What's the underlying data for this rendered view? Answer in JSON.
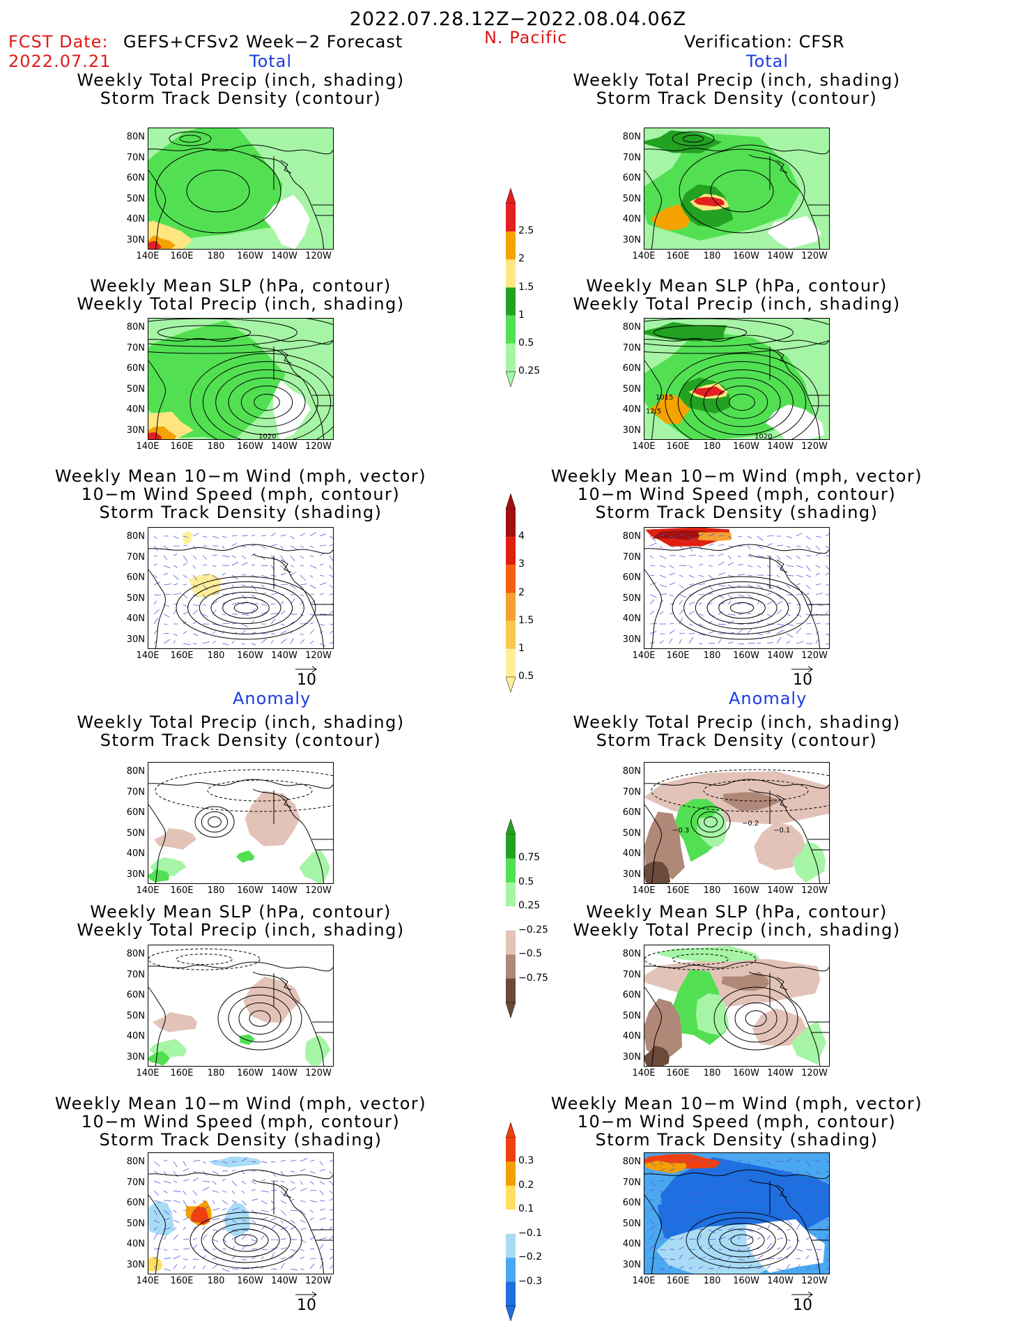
{
  "header": {
    "date_range": "2022.07.28.12Z−2022.08.04.06Z",
    "fcst_label": "FCST Date:",
    "model_label": "GEFS+CFSv2 Week−2 Forecast",
    "fcst_date": "2022.07.21",
    "region": "N. Pacific",
    "verification": "Verification: CFSR"
  },
  "sections": {
    "total": "Total",
    "anomaly": "Anomaly"
  },
  "titles": {
    "precip_storm": [
      "Weekly Total Precip (inch, shading)",
      "Storm Track Density (contour)"
    ],
    "slp_precip": [
      "Weekly Mean SLP (hPa, contour)",
      "Weekly Total Precip (inch, shading)"
    ],
    "wind_storm": [
      "Weekly Mean 10−m Wind (mph, vector)",
      "10−m Wind Speed (mph, contour)",
      "Storm Track Density (shading)"
    ]
  },
  "axes": {
    "lat_labels": [
      "80N",
      "70N",
      "60N",
      "50N",
      "40N",
      "30N"
    ],
    "lon_labels": [
      "140E",
      "160E",
      "180",
      "160W",
      "140W",
      "120W"
    ]
  },
  "contour_labels": {
    "fcst_total_slp": "1020",
    "obs_total_slp_a": "1020",
    "obs_total_slp_b": "1015",
    "obs_total_slp_c": "12.5",
    "obs_anom_precip_a": "−0.3",
    "obs_anom_precip_b": "−0.2",
    "obs_anom_precip_c": "−0.1"
  },
  "vector_ref": "10",
  "colorbars": {
    "precip_total": {
      "labels": [
        "2.5",
        "2",
        "1.5",
        "1",
        "0.5",
        "0.25"
      ],
      "colors": [
        "#e52020",
        "#f5a300",
        "#ffe680",
        "#23a123",
        "#52e052",
        "#a6f5a6"
      ]
    },
    "storm_total": {
      "labels": [
        "4",
        "3",
        "2",
        "1.5",
        "1",
        "0.5"
      ],
      "colors": [
        "#a01010",
        "#e02010",
        "#f56010",
        "#f5a030",
        "#f8c84a",
        "#ffee99"
      ]
    },
    "precip_anom": {
      "labels": [
        "0.75",
        "0.5",
        "0.25",
        "−0.25",
        "−0.5",
        "−0.75"
      ],
      "colors": [
        "#23a123",
        "#52e052",
        "#a6f5a6",
        "#ffffff",
        "#e3c3b8",
        "#b08878",
        "#6b4a3a"
      ]
    },
    "storm_anom": {
      "labels": [
        "0.3",
        "0.2",
        "0.1",
        "−0.1",
        "−0.2",
        "−0.3"
      ],
      "colors": [
        "#f04010",
        "#f5a000",
        "#ffe060",
        "#ffffff",
        "#a8dcf5",
        "#4aa8f0",
        "#1e6fe0"
      ]
    }
  }
}
